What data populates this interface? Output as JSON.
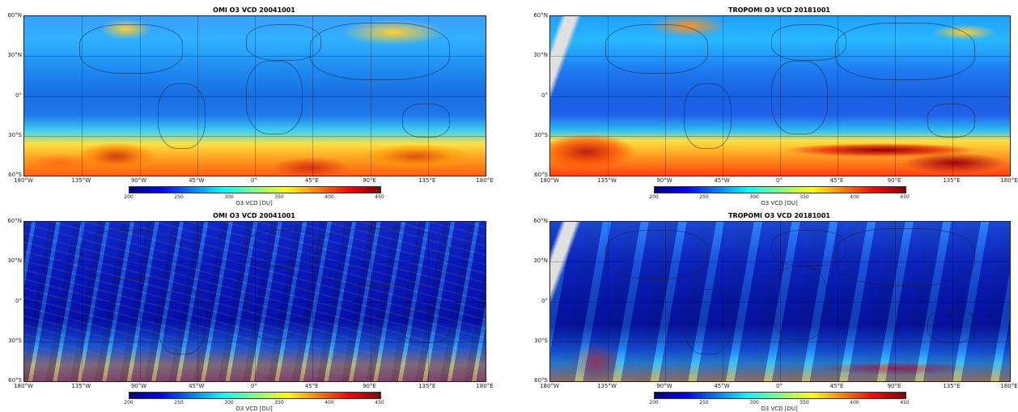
{
  "panels": [
    {
      "title": "OMI O3 VCD 20041001",
      "style": "smooth-omi"
    },
    {
      "title": "TROPOMI O3 VCD 20181001",
      "style": "smooth-tropomi"
    },
    {
      "title": "OMI O3 VCD 20041001",
      "style": "noisy-omi"
    },
    {
      "title": "TROPOMI O3 VCD 20181001",
      "style": "noisy-tropomi"
    }
  ],
  "lon_ticks": [
    "180°W",
    "135°W",
    "90°W",
    "45°W",
    "0°",
    "45°E",
    "90°E",
    "135°E",
    "180°E"
  ],
  "lat_ticks": [
    "60°N",
    "30°N",
    "0°",
    "30°S",
    "60°S"
  ],
  "colorbar": {
    "ticks": [
      "200",
      "250",
      "300",
      "350",
      "400",
      "450"
    ],
    "label": "O3 VCD [DU]",
    "colormap": [
      "#00007f",
      "#0000ff",
      "#007fff",
      "#00ffff",
      "#7fff7f",
      "#ffff00",
      "#ff7f00",
      "#ff0000",
      "#7f0000"
    ]
  }
}
